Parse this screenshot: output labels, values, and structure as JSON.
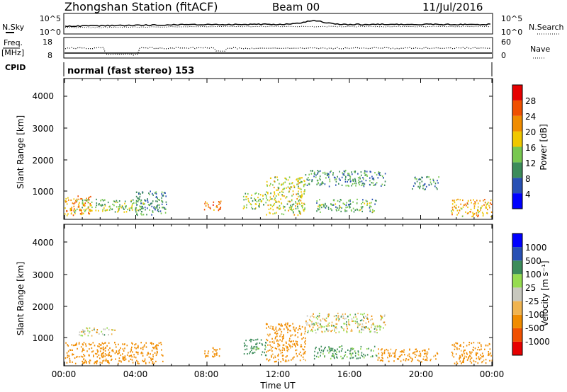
{
  "header": {
    "station": "Zhongshan Station (fitACF)",
    "beam": "Beam 00",
    "date": "11/Jul/2016"
  },
  "noise_panel": {
    "left_label": "N.Sky",
    "left_ticks": [
      "10^5",
      "10^0"
    ],
    "right_label": "N.Search",
    "right_ticks": [
      "10^5",
      "10^0"
    ]
  },
  "freq_panel": {
    "left_label_top": "Freq.",
    "left_label_bottom": "[MHz]",
    "left_ticks": [
      "18",
      "8"
    ],
    "right_label": "Nave",
    "right_ticks": [
      "60",
      "0"
    ]
  },
  "cpid": {
    "label": "CPID",
    "mode": "normal (fast stereo) 153"
  },
  "time_axis": {
    "label": "Time UT",
    "ticks": [
      "00:00",
      "04:00",
      "08:00",
      "12:00",
      "16:00",
      "20:00",
      "00:00"
    ]
  },
  "colors": {
    "power": [
      "#0000ff",
      "#2850b4",
      "#3c8c5a",
      "#78c850",
      "#f0c800",
      "#f08c00",
      "#f05000",
      "#e60000"
    ],
    "velocity": [
      "#e60000",
      "#f05000",
      "#f08c00",
      "#f0b450",
      "#c8c8be",
      "#96dc50",
      "#3c8c5a",
      "#2850b4",
      "#0000ff"
    ]
  },
  "chart_data": [
    {
      "type": "heatmap",
      "title": "Power",
      "xlabel": "Time UT",
      "ylabel": "Slant Range [km]",
      "xlim": [
        "00:00",
        "24:00"
      ],
      "ylim": [
        180,
        4500
      ],
      "y_ticks": [
        "1000",
        "2000",
        "3000",
        "4000"
      ],
      "colorbar": {
        "label": "Power [dB]",
        "range": [
          0,
          32
        ],
        "tick_labels": [
          "4",
          "8",
          "12",
          "16",
          "20",
          "24",
          "28"
        ]
      },
      "echo_regions": [
        {
          "t_start": 0.0,
          "t_end": 1.5,
          "range_min": 300,
          "range_max": 900,
          "power_db": 22
        },
        {
          "t_start": 0.5,
          "t_end": 4.5,
          "range_min": 400,
          "range_max": 800,
          "power_db": 14
        },
        {
          "t_start": 4.0,
          "t_end": 5.7,
          "range_min": 300,
          "range_max": 1050,
          "power_db": 10
        },
        {
          "t_start": 7.8,
          "t_end": 8.8,
          "range_min": 450,
          "range_max": 750,
          "power_db": 24
        },
        {
          "t_start": 10.0,
          "t_end": 11.3,
          "range_min": 500,
          "range_max": 1000,
          "power_db": 14
        },
        {
          "t_start": 11.3,
          "t_end": 13.5,
          "range_min": 300,
          "range_max": 1500,
          "power_db": 16
        },
        {
          "t_start": 13.5,
          "t_end": 18.0,
          "range_min": 1200,
          "range_max": 1700,
          "power_db": 10
        },
        {
          "t_start": 14.0,
          "t_end": 17.5,
          "range_min": 400,
          "range_max": 800,
          "power_db": 12
        },
        {
          "t_start": 19.5,
          "t_end": 21.0,
          "range_min": 1100,
          "range_max": 1500,
          "power_db": 10
        },
        {
          "t_start": 21.7,
          "t_end": 24.0,
          "range_min": 250,
          "range_max": 800,
          "power_db": 20
        }
      ]
    },
    {
      "type": "heatmap",
      "title": "Velocity",
      "xlabel": "Time UT",
      "ylabel": "Slant Range [km]",
      "xlim": [
        "00:00",
        "24:00"
      ],
      "ylim": [
        180,
        4500
      ],
      "y_ticks": [
        "1000",
        "2000",
        "3000",
        "4000"
      ],
      "colorbar": {
        "label": "Velocity [m s⁻¹]",
        "tick_labels": [
          "-1000",
          "-500",
          "-100",
          "-25",
          "25",
          "100",
          "500",
          "1000"
        ]
      },
      "echo_regions": [
        {
          "t_start": 0.0,
          "t_end": 5.5,
          "range_min": 250,
          "range_max": 900,
          "velocity_ms": -300
        },
        {
          "t_start": 0.8,
          "t_end": 2.8,
          "range_min": 1100,
          "range_max": 1350,
          "velocity_ms": 0
        },
        {
          "t_start": 7.8,
          "t_end": 8.8,
          "range_min": 450,
          "range_max": 750,
          "velocity_ms": -300
        },
        {
          "t_start": 10.0,
          "t_end": 11.3,
          "range_min": 500,
          "range_max": 1000,
          "velocity_ms": 200
        },
        {
          "t_start": 11.3,
          "t_end": 13.5,
          "range_min": 300,
          "range_max": 1500,
          "velocity_ms": -200
        },
        {
          "t_start": 13.5,
          "t_end": 18.0,
          "range_min": 1200,
          "range_max": 1800,
          "velocity_ms": 0
        },
        {
          "t_start": 14.0,
          "t_end": 17.5,
          "range_min": 400,
          "range_max": 800,
          "velocity_ms": 150
        },
        {
          "t_start": 17.5,
          "t_end": 21.0,
          "range_min": 300,
          "range_max": 700,
          "velocity_ms": -200
        },
        {
          "t_start": 21.7,
          "t_end": 24.0,
          "range_min": 250,
          "range_max": 900,
          "velocity_ms": -200
        }
      ]
    }
  ]
}
